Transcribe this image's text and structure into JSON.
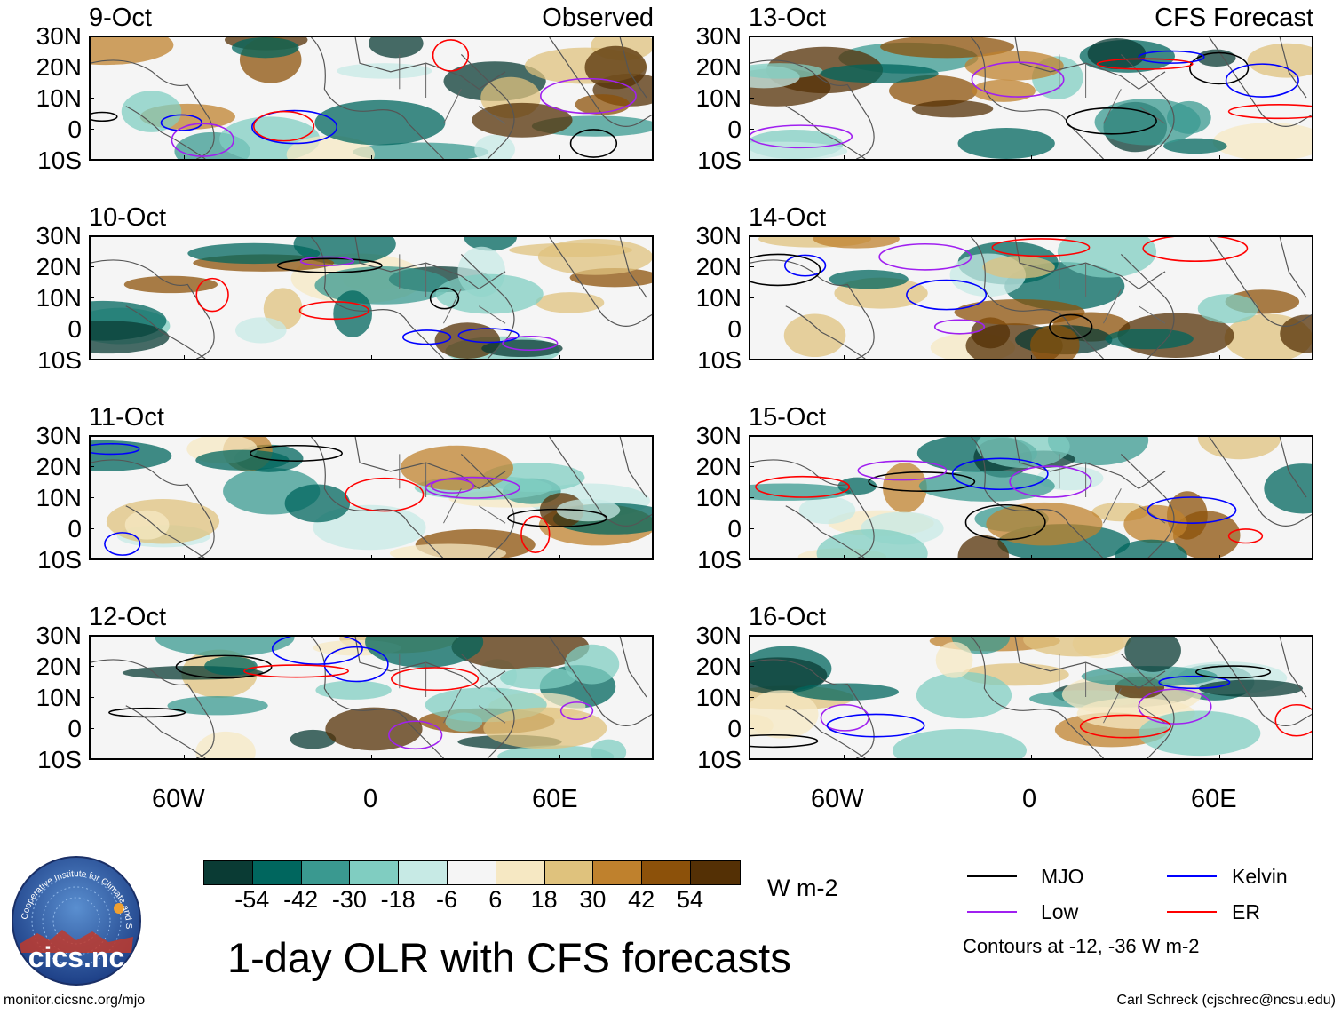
{
  "panels": [
    {
      "date": "9-Oct",
      "tag": "Observed"
    },
    {
      "date": "10-Oct",
      "tag": ""
    },
    {
      "date": "11-Oct",
      "tag": ""
    },
    {
      "date": "12-Oct",
      "tag": ""
    },
    {
      "date": "13-Oct",
      "tag": "CFS Forecast"
    },
    {
      "date": "14-Oct",
      "tag": ""
    },
    {
      "date": "15-Oct",
      "tag": ""
    },
    {
      "date": "16-Oct",
      "tag": ""
    }
  ],
  "lat_labels": [
    "30N",
    "20N",
    "10N",
    "0",
    "10S"
  ],
  "lon_labels": [
    "60W",
    "0",
    "60E"
  ],
  "colorbar": {
    "colors": [
      "#0a3b34",
      "#00665e",
      "#3a9990",
      "#80cdc1",
      "#c7eae5",
      "#f5f5f5",
      "#f6e8c3",
      "#dfc27d",
      "#bf812d",
      "#8c510a",
      "#543005"
    ],
    "labels": [
      "-54",
      "-42",
      "-30",
      "-18",
      "-6",
      "6",
      "18",
      "30",
      "42",
      "54"
    ],
    "units": "W m-2"
  },
  "title": "1-day OLR with CFS forecasts",
  "logo": {
    "text": "cics.nc",
    "arc_text": "Cooperative Institute for Climate and Satellites"
  },
  "legend": {
    "items": [
      {
        "label": "MJO",
        "color": "#000000"
      },
      {
        "label": "Kelvin",
        "color": "#0000ff"
      },
      {
        "label": "Low",
        "color": "#a020f0"
      },
      {
        "label": "ER",
        "color": "#ff0000"
      }
    ],
    "note": "Contours at -12, -36 W m-2"
  },
  "footer": {
    "url": "monitor.cicsnc.org/mjo",
    "credit": "Carl Schreck (cjschrec@ncsu.edu)"
  }
}
